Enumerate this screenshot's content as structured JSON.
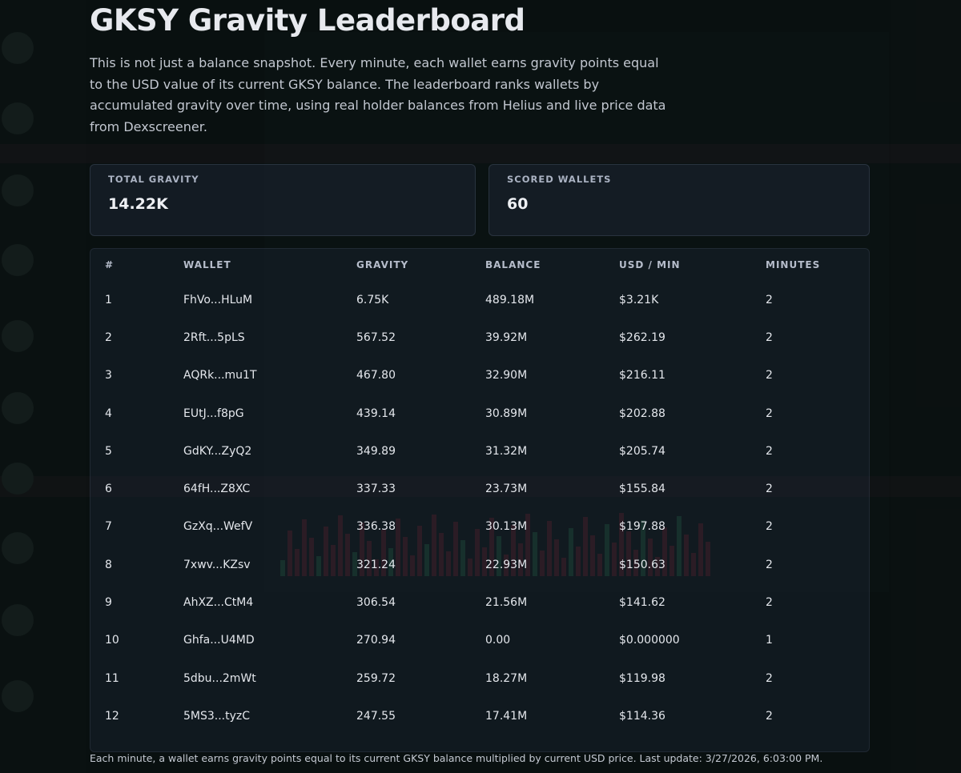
{
  "header": {
    "title": "GKSY Gravity Leaderboard",
    "description": "This is not just a balance snapshot. Every minute, each wallet earns gravity points equal to the USD value of its current GKSY balance. The leaderboard ranks wallets by accumulated gravity over time, using real holder balances from Helius and live price data from Dexscreener."
  },
  "stats": {
    "total_gravity_label": "TOTAL GRAVITY",
    "total_gravity_value": "14.22K",
    "scored_wallets_label": "SCORED WALLETS",
    "scored_wallets_value": "60"
  },
  "table": {
    "columns": [
      "#",
      "WALLET",
      "GRAVITY",
      "BALANCE",
      "USD / MIN",
      "MINUTES"
    ],
    "rows": [
      {
        "rank": "1",
        "wallet": "FhVo...HLuM",
        "gravity": "6.75K",
        "balance": "489.18M",
        "usd_min": "$3.21K",
        "minutes": "2"
      },
      {
        "rank": "2",
        "wallet": "2Rft...5pLS",
        "gravity": "567.52",
        "balance": "39.92M",
        "usd_min": "$262.19",
        "minutes": "2"
      },
      {
        "rank": "3",
        "wallet": "AQRk...mu1T",
        "gravity": "467.80",
        "balance": "32.90M",
        "usd_min": "$216.11",
        "minutes": "2"
      },
      {
        "rank": "4",
        "wallet": "EUtJ...f8pG",
        "gravity": "439.14",
        "balance": "30.89M",
        "usd_min": "$202.88",
        "minutes": "2"
      },
      {
        "rank": "5",
        "wallet": "GdKY...ZyQ2",
        "gravity": "349.89",
        "balance": "31.32M",
        "usd_min": "$205.74",
        "minutes": "2"
      },
      {
        "rank": "6",
        "wallet": "64fH...Z8XC",
        "gravity": "337.33",
        "balance": "23.73M",
        "usd_min": "$155.84",
        "minutes": "2"
      },
      {
        "rank": "7",
        "wallet": "GzXq...WefV",
        "gravity": "336.38",
        "balance": "30.13M",
        "usd_min": "$197.88",
        "minutes": "2"
      },
      {
        "rank": "8",
        "wallet": "7xwv...KZsv",
        "gravity": "321.24",
        "balance": "22.93M",
        "usd_min": "$150.63",
        "minutes": "2"
      },
      {
        "rank": "9",
        "wallet": "AhXZ...CtM4",
        "gravity": "306.54",
        "balance": "21.56M",
        "usd_min": "$141.62",
        "minutes": "2"
      },
      {
        "rank": "10",
        "wallet": "Ghfa...U4MD",
        "gravity": "270.94",
        "balance": "0.00",
        "usd_min": "$0.000000",
        "minutes": "1"
      },
      {
        "rank": "11",
        "wallet": "5dbu...2mWt",
        "gravity": "259.72",
        "balance": "18.27M",
        "usd_min": "$119.98",
        "minutes": "2"
      },
      {
        "rank": "12",
        "wallet": "5MS3...tyzC",
        "gravity": "247.55",
        "balance": "17.41M",
        "usd_min": "$114.36",
        "minutes": "2"
      }
    ]
  },
  "footer": {
    "note": "Each minute, a wallet earns gravity points equal to its current GKSY balance multiplied by current USD price. Last update: 3/27/2026, 6:03:00 PM."
  },
  "colors": {
    "background": "#0c1512",
    "wallet_link": "#7aa8ff",
    "card_border": "#5c6680"
  }
}
